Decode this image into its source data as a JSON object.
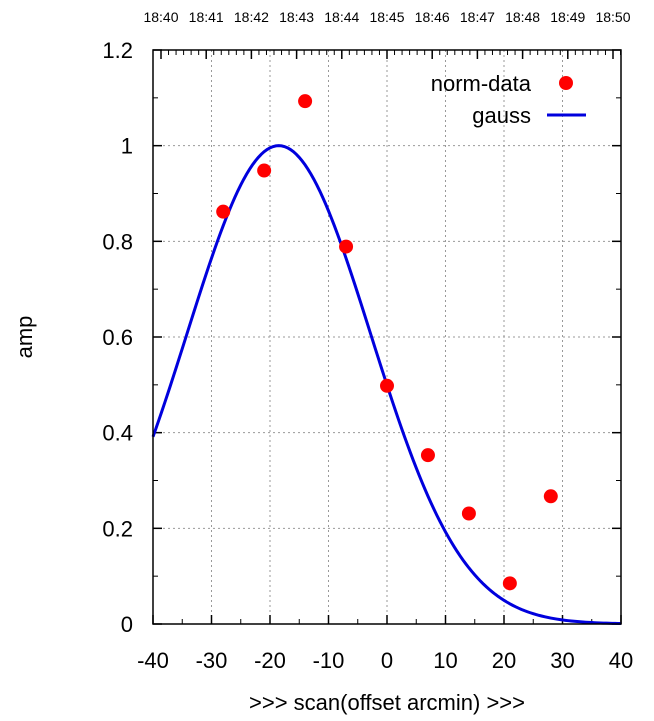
{
  "chart_data": {
    "type": "scatter",
    "xlabel": ">>> scan(offset arcmin) >>>",
    "ylabel": "amp",
    "xlim": [
      -40,
      40
    ],
    "ylim": [
      0,
      1.2
    ],
    "x_ticks": [
      "-40",
      "-30",
      "-20",
      "-10",
      "0",
      "10",
      "20",
      "30",
      "40"
    ],
    "y_ticks": [
      "0",
      "0.2",
      "0.4",
      "0.6",
      "0.8",
      "1",
      "1.2"
    ],
    "top_ticks": [
      "18:40",
      "18:41",
      "18:42",
      "18:43",
      "18:44",
      "18:45",
      "18:46",
      "18:47",
      "18:48",
      "18:49",
      "18:50"
    ],
    "grid": true,
    "legend_position": "top-right",
    "series": [
      {
        "name": "norm-data",
        "kind": "points",
        "color": "#ff0000",
        "x": [
          -28,
          -21,
          -14,
          -7,
          0,
          7,
          14,
          21,
          28
        ],
        "y": [
          0.862,
          0.948,
          1.093,
          0.789,
          0.498,
          0.353,
          0.231,
          0.085,
          0.267
        ]
      },
      {
        "name": "gauss",
        "kind": "line",
        "color": "#0000dd",
        "peak_amplitude": 1.0,
        "center": -18.5,
        "sigma": 15.7
      }
    ]
  }
}
